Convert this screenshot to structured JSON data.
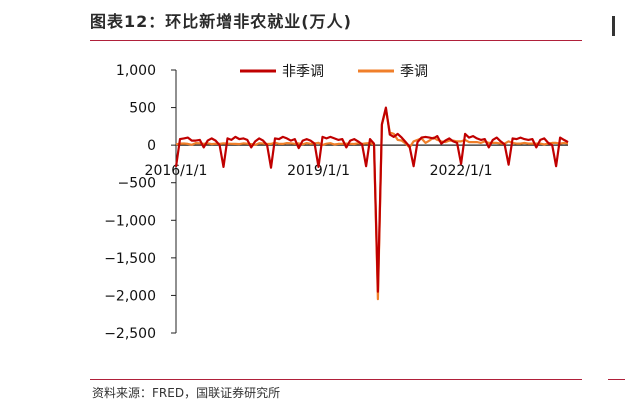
{
  "title": "图表12：环比新增非农就业(万人)",
  "source": "资料来源：FRED，国联证券研究所",
  "chart_data": {
    "type": "line",
    "ylim": [
      -2500,
      1000
    ],
    "yticks": [
      1000,
      500,
      0,
      -500,
      -1000,
      -1500,
      -2000,
      -2500
    ],
    "ytick_labels": [
      "1,000",
      "500",
      "0",
      "−500",
      "−1,000",
      "−1,500",
      "−2,000",
      "−2,500"
    ],
    "xlim": [
      "2016-01",
      "2024-04"
    ],
    "xticks": [
      "2016-01",
      "2019-01",
      "2022-01"
    ],
    "xtick_labels": [
      "2016/1/1",
      "2019/1/1",
      "2022/1/1"
    ],
    "legend_position": "top",
    "series": [
      {
        "name": "非季调",
        "color": "#c00000",
        "values": [
          -290,
          80,
          90,
          100,
          60,
          60,
          70,
          -30,
          60,
          90,
          60,
          0,
          -290,
          90,
          70,
          110,
          80,
          90,
          70,
          -30,
          50,
          90,
          60,
          0,
          -300,
          90,
          80,
          110,
          90,
          60,
          80,
          -40,
          60,
          80,
          60,
          20,
          -290,
          110,
          90,
          110,
          90,
          70,
          80,
          -30,
          60,
          80,
          50,
          10,
          -280,
          80,
          20,
          -1950,
          280,
          500,
          140,
          110,
          150,
          100,
          40,
          -20,
          -280,
          40,
          100,
          110,
          100,
          90,
          120,
          20,
          60,
          90,
          50,
          30,
          -250,
          150,
          100,
          120,
          90,
          70,
          80,
          -30,
          70,
          100,
          50,
          10,
          -260,
          90,
          80,
          100,
          80,
          70,
          80,
          -30,
          70,
          90,
          30,
          0,
          -280,
          100,
          70,
          40
        ]
      },
      {
        "name": "季调",
        "color": "#f07f2a",
        "values": [
          10,
          20,
          22,
          16,
          4,
          27,
          25,
          18,
          25,
          14,
          19,
          16,
          23,
          20,
          18,
          17,
          14,
          23,
          19,
          14,
          3,
          26,
          22,
          15,
          17,
          33,
          18,
          16,
          27,
          24,
          18,
          23,
          11,
          27,
          18,
          23,
          31,
          2,
          19,
          26,
          8,
          16,
          18,
          20,
          18,
          15,
          25,
          18,
          23,
          27,
          10,
          -2050,
          270,
          480,
          170,
          150,
          70,
          60,
          20,
          -30,
          50,
          70,
          90,
          30,
          60,
          100,
          70,
          50,
          40,
          60,
          60,
          50,
          50,
          70,
          40,
          40,
          40,
          30,
          50,
          30,
          30,
          30,
          20,
          20,
          50,
          30,
          20,
          20,
          30,
          20,
          20,
          20,
          20,
          10,
          20,
          30,
          30,
          20,
          30,
          20
        ]
      }
    ]
  }
}
